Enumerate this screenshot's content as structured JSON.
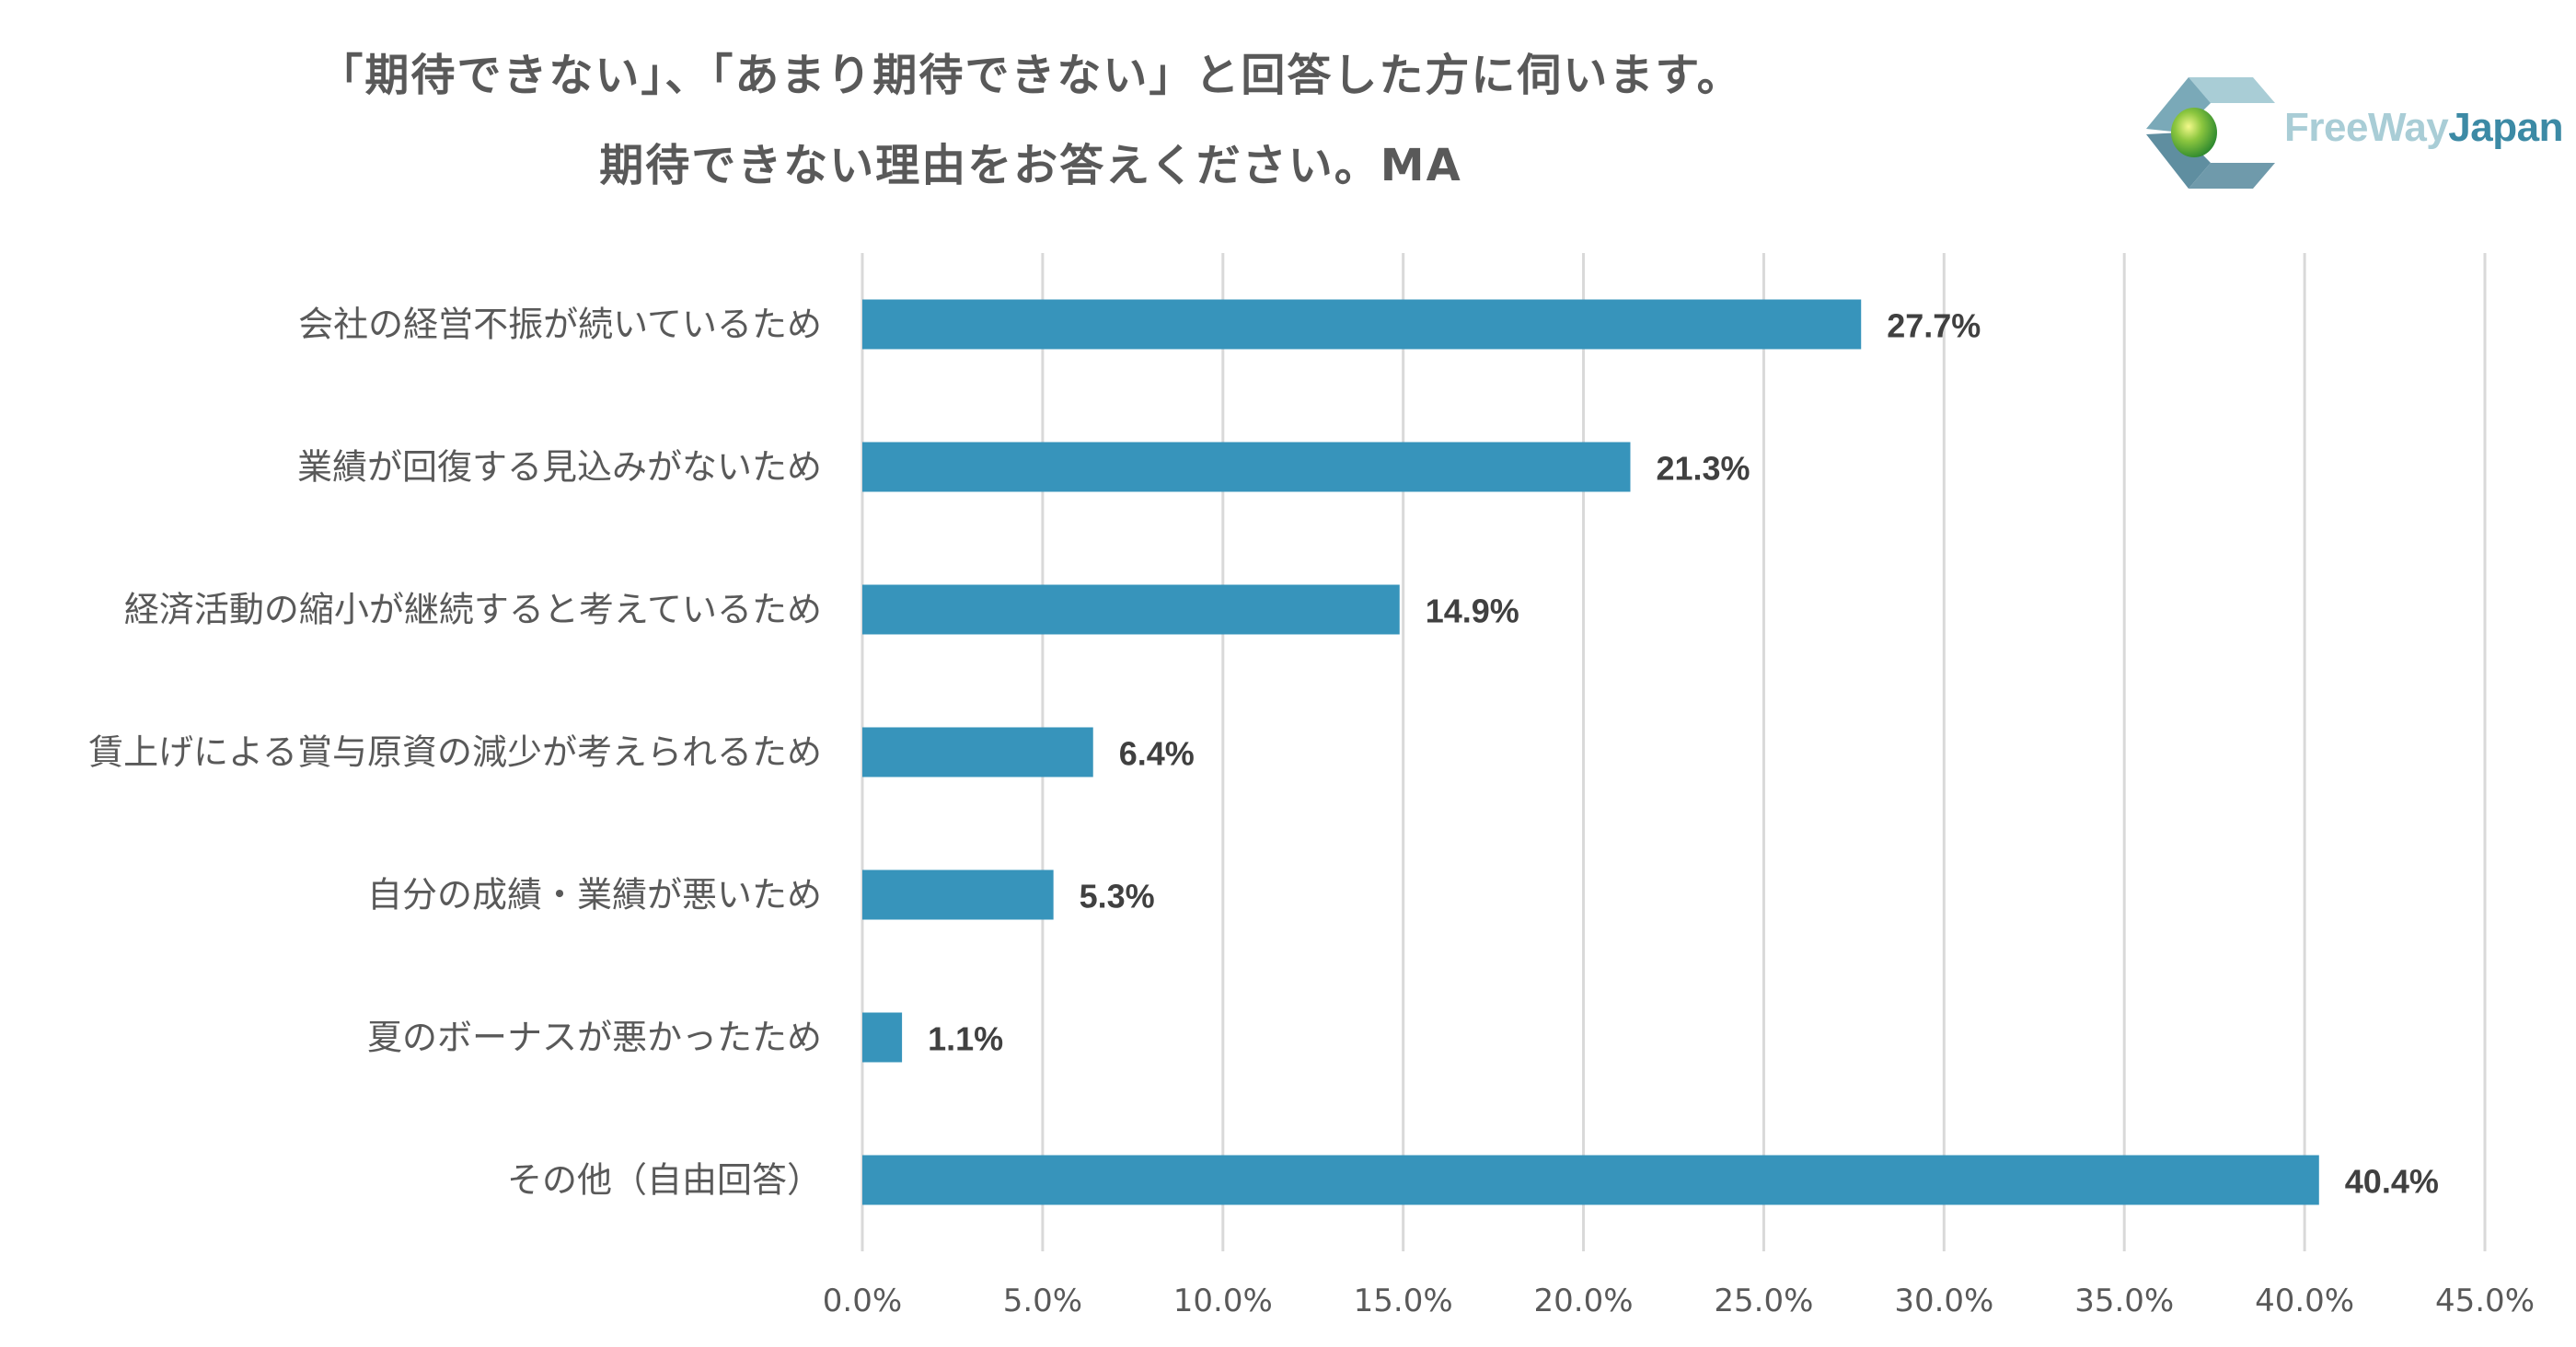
{
  "title": {
    "line1": "「期待できない」、「あまり期待できない」と回答した方に伺います。",
    "line2": "期待できない理由をお答えください。MA"
  },
  "logo": {
    "text_light": "FreeWay",
    "text_dark": "Japan",
    "icon": "freewayjapan-logo-icon"
  },
  "colors": {
    "bar": "#3794bb",
    "grid": "#d9d9d9",
    "label": "#595959",
    "value_label": "#404040"
  },
  "chart_data": {
    "type": "bar",
    "orientation": "horizontal",
    "categories": [
      "会社の経営不振が続いているため",
      "業績が回復する見込みがないため",
      "経済活動の縮小が継続すると考えているため",
      "賃上げによる賞与原資の減少が考えられるため",
      "自分の成績・業績が悪いため",
      "夏のボーナスが悪かったため",
      "その他（自由回答）"
    ],
    "values": [
      27.7,
      21.3,
      14.9,
      6.4,
      5.3,
      1.1,
      40.4
    ],
    "value_labels": [
      "27.7%",
      "21.3%",
      "14.9%",
      "6.4%",
      "5.3%",
      "1.1%",
      "40.4%"
    ],
    "xlim": [
      0,
      45
    ],
    "x_ticks": [
      0,
      5,
      10,
      15,
      20,
      25,
      30,
      35,
      40,
      45
    ],
    "x_tick_labels": [
      "0.0%",
      "5.0%",
      "10.0%",
      "15.0%",
      "20.0%",
      "25.0%",
      "30.0%",
      "35.0%",
      "40.0%",
      "45.0%"
    ],
    "grid": true,
    "legend": "none"
  }
}
